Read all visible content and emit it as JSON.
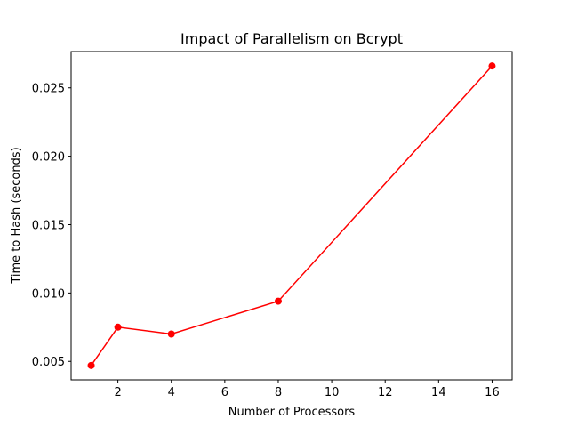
{
  "chart_data": {
    "type": "line",
    "title": "Impact of Parallelism on Bcrypt",
    "xlabel": "Number of Processors",
    "ylabel": "Time to Hash (seconds)",
    "xlim": [
      0.25,
      16.75
    ],
    "ylim": [
      0.00365,
      0.02765
    ],
    "x_ticks": [
      2,
      4,
      6,
      8,
      10,
      12,
      14,
      16
    ],
    "x_tick_labels": [
      "2",
      "4",
      "6",
      "8",
      "10",
      "12",
      "14",
      "16"
    ],
    "y_ticks": [
      0.005,
      0.01,
      0.015,
      0.02,
      0.025
    ],
    "y_tick_labels": [
      "0.005",
      "0.010",
      "0.015",
      "0.020",
      "0.025"
    ],
    "grid": false,
    "series": [
      {
        "color": "#ff0000",
        "marker": "circle",
        "x": [
          1,
          2,
          4,
          8,
          16
        ],
        "y": [
          0.0047,
          0.0075,
          0.007,
          0.0094,
          0.0266
        ]
      }
    ]
  }
}
